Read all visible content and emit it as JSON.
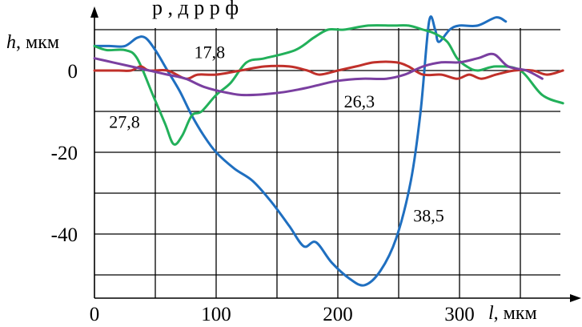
{
  "header_fragment": "р     ,     д       р  р ф",
  "chart_data": {
    "type": "line",
    "title": "",
    "xlabel": "l, мкм",
    "ylabel": "h, мкм",
    "xlabel_letter": "l",
    "xlabel_unit": ", мкм",
    "ylabel_letter": "h",
    "ylabel_unit": ", мкм",
    "xlim": [
      0,
      385
    ],
    "ylim": [
      -53,
      10
    ],
    "x_ticks": [
      0,
      100,
      200,
      300
    ],
    "x_tick_labels": [
      "0",
      "100",
      "200",
      "300"
    ],
    "y_ticks": [
      0,
      -20,
      -40
    ],
    "y_tick_labels": [
      "0",
      "-20",
      "-40"
    ],
    "x_grid": [
      0,
      50,
      100,
      150,
      200,
      250,
      300,
      350
    ],
    "y_grid": [
      10,
      0,
      -10,
      -20,
      -30,
      -40,
      -50
    ],
    "grid": true,
    "series": [
      {
        "color": "#1f6fc0",
        "points": [
          [
            0,
            6
          ],
          [
            12,
            6
          ],
          [
            25,
            6
          ],
          [
            35,
            8
          ],
          [
            42,
            8
          ],
          [
            50,
            5
          ],
          [
            60,
            0
          ],
          [
            70,
            -5
          ],
          [
            80,
            -11
          ],
          [
            90,
            -16
          ],
          [
            100,
            -20
          ],
          [
            115,
            -24
          ],
          [
            130,
            -27
          ],
          [
            145,
            -32
          ],
          [
            160,
            -38
          ],
          [
            172,
            -43
          ],
          [
            182,
            -42
          ],
          [
            195,
            -47
          ],
          [
            210,
            -51
          ],
          [
            222,
            -52.5
          ],
          [
            235,
            -49
          ],
          [
            248,
            -41
          ],
          [
            260,
            -27
          ],
          [
            268,
            -10
          ],
          [
            275,
            12
          ],
          [
            280,
            10
          ],
          [
            283,
            7
          ],
          [
            292,
            10
          ],
          [
            300,
            11
          ],
          [
            315,
            11
          ],
          [
            330,
            13
          ],
          [
            338,
            12
          ]
        ]
      },
      {
        "color": "#22b05a",
        "points": [
          [
            0,
            6
          ],
          [
            10,
            5
          ],
          [
            25,
            5
          ],
          [
            35,
            3
          ],
          [
            48,
            -6
          ],
          [
            58,
            -13
          ],
          [
            65,
            -18
          ],
          [
            72,
            -16
          ],
          [
            80,
            -11
          ],
          [
            88,
            -10
          ],
          [
            100,
            -6
          ],
          [
            112,
            -3
          ],
          [
            125,
            2
          ],
          [
            140,
            3
          ],
          [
            165,
            5
          ],
          [
            180,
            8
          ],
          [
            192,
            10
          ],
          [
            205,
            10
          ],
          [
            225,
            11
          ],
          [
            245,
            11
          ],
          [
            258,
            11
          ],
          [
            270,
            10
          ],
          [
            280,
            9
          ],
          [
            290,
            7
          ],
          [
            298,
            3
          ],
          [
            306,
            1
          ],
          [
            315,
            0
          ],
          [
            330,
            1
          ],
          [
            350,
            0
          ],
          [
            368,
            -6
          ],
          [
            385,
            -8
          ]
        ]
      },
      {
        "color": "#c0302a",
        "points": [
          [
            0,
            0
          ],
          [
            20,
            0
          ],
          [
            30,
            0
          ],
          [
            38,
            1
          ],
          [
            45,
            0
          ],
          [
            60,
            0
          ],
          [
            75,
            -2
          ],
          [
            85,
            -1
          ],
          [
            100,
            -1
          ],
          [
            120,
            0
          ],
          [
            140,
            1
          ],
          [
            160,
            1
          ],
          [
            175,
            0
          ],
          [
            185,
            -1
          ],
          [
            200,
            0
          ],
          [
            215,
            1
          ],
          [
            230,
            2
          ],
          [
            248,
            2
          ],
          [
            258,
            1
          ],
          [
            270,
            -1
          ],
          [
            285,
            -1
          ],
          [
            298,
            -2
          ],
          [
            308,
            -1
          ],
          [
            318,
            -2
          ],
          [
            330,
            -1
          ],
          [
            345,
            0
          ],
          [
            360,
            0
          ],
          [
            372,
            -1
          ],
          [
            385,
            0
          ]
        ]
      },
      {
        "color": "#7a3fa0",
        "points": [
          [
            0,
            3
          ],
          [
            15,
            2
          ],
          [
            30,
            1
          ],
          [
            45,
            0
          ],
          [
            60,
            -1
          ],
          [
            75,
            -2
          ],
          [
            90,
            -4
          ],
          [
            110,
            -5.5
          ],
          [
            125,
            -6
          ],
          [
            150,
            -5.5
          ],
          [
            170,
            -4.5
          ],
          [
            185,
            -3.5
          ],
          [
            200,
            -2.5
          ],
          [
            220,
            -2
          ],
          [
            240,
            -2
          ],
          [
            255,
            -1
          ],
          [
            270,
            1
          ],
          [
            285,
            2
          ],
          [
            300,
            2
          ],
          [
            315,
            3
          ],
          [
            328,
            4
          ],
          [
            340,
            1
          ],
          [
            355,
            0
          ],
          [
            368,
            -2
          ]
        ]
      }
    ],
    "annotations": [
      {
        "text": "17,8",
        "x": 82,
        "y": 3
      },
      {
        "text": "27,8",
        "x": 12,
        "y": -14
      },
      {
        "text": "26,3",
        "x": 205,
        "y": -9
      },
      {
        "text": "38,5",
        "x": 262,
        "y": -37
      }
    ]
  }
}
